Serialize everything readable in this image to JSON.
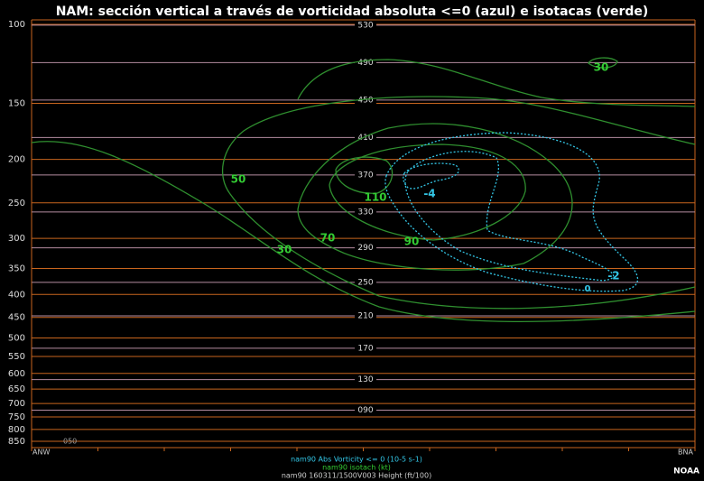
{
  "chart_data": {
    "type": "cross-section",
    "title": "NAM: sección vertical a través de vorticidad absoluta <=0 (azul) e isotacas (verde)",
    "ylim": [
      100,
      850
    ],
    "yticks": [
      100,
      150,
      200,
      250,
      300,
      350,
      400,
      450,
      500,
      550,
      600,
      650,
      700,
      750,
      800,
      850
    ],
    "log_scale": true,
    "y_inverted": true,
    "grid": true,
    "grid_color": "#c8651e",
    "x_labels": [
      "ANW",
      "BNA"
    ],
    "bottom_label": "050",
    "height_contours": [
      530,
      490,
      450,
      410,
      370,
      330,
      290,
      250,
      210,
      170,
      130,
      {
        "value": 90,
        "label": "090"
      }
    ],
    "height_color": "#b48ca0",
    "isotach_labels": [
      30,
      50,
      70,
      90,
      110,
      30
    ],
    "isotach_color": "#2f8f2f",
    "isotach_label_color": "#33cc33",
    "vorticity_labels": [
      -4,
      -2,
      0
    ],
    "vorticity_color": "#33c6e6",
    "legend": [
      {
        "name": "nam90 Abs Vorticity <= 0 (10-5 s-1)",
        "color": "#33c6e6"
      },
      {
        "name": "nam90 isotach (kt)",
        "color": "#33cc33"
      },
      {
        "name": "nam90 160311/1500V003 Height (ft/100)",
        "color": "#cccccc"
      }
    ]
  },
  "credit": "NOAA"
}
